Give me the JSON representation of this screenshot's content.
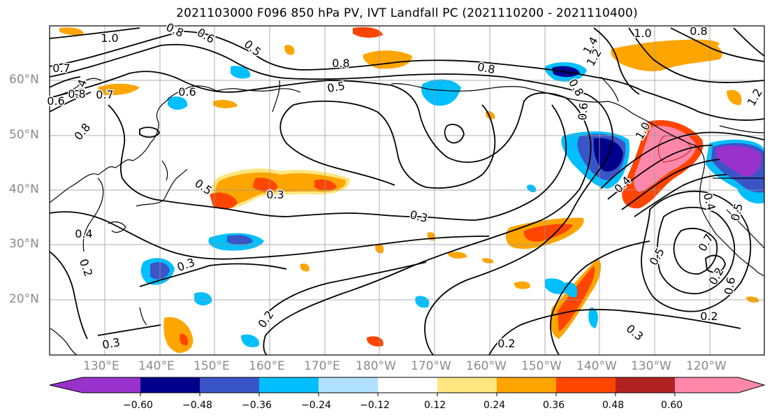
{
  "title": "2021103000 F096 850 hPa PV, IVT Landfall PC (2021110200 - 2021110400)",
  "lat_labels": [
    "60°N",
    "50°N",
    "40°N",
    "30°N",
    "20°N"
  ],
  "lon_labels": [
    "130°E",
    "140°E",
    "150°E",
    "160°E",
    "170°E",
    "180°W",
    "170°W",
    "160°W",
    "150°W",
    "140°W",
    "130°W",
    "120°W"
  ],
  "colorbar": {
    "ticks": [
      "−0.60",
      "−0.48",
      "−0.36",
      "−0.24",
      "−0.12",
      "0.12",
      "0.24",
      "0.36",
      "0.48",
      "0.60"
    ],
    "colors": [
      "#9932cc",
      "#00008b",
      "#3a55c8",
      "#00bfff",
      "#b0e2ff",
      "#ffffff",
      "#ffe680",
      "#ffa500",
      "#ff4500",
      "#b22222",
      "#ff88aa"
    ]
  },
  "contour_labels": [
    "1.0",
    "0.8",
    "0.6",
    "0.5",
    "0.4",
    "0.7",
    "0.6",
    "0.8",
    "0.7",
    "0.5",
    "0.6",
    "0.8",
    "0.8",
    "0.5",
    "0.3",
    "0.3",
    "0.3",
    "0.3",
    "0.2",
    "0.2",
    "0.4",
    "1.0",
    "0.8",
    "0.8",
    "1.4",
    "1.2",
    "1.2",
    "1.0",
    "0.4",
    "0.5",
    "0.7",
    "0.6",
    "0.2",
    "0.2",
    "0.3",
    "0.2",
    "0.4",
    "0.5",
    "0.8",
    "0.6"
  ]
}
